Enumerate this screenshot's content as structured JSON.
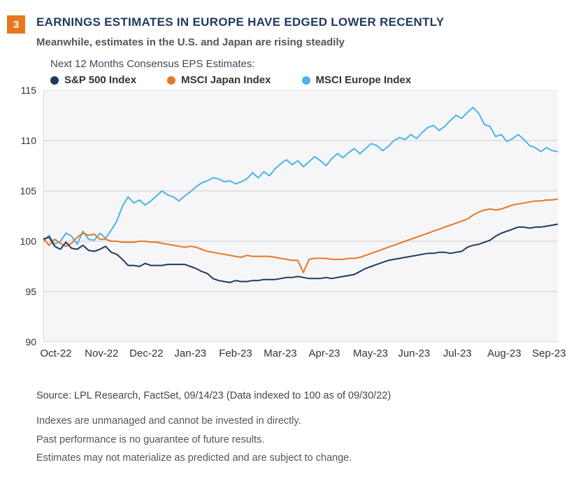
{
  "badge": "3",
  "title": "EARNINGS ESTIMATES IN EUROPE HAVE EDGED LOWER RECENTLY",
  "subtitle": "Meanwhile, estimates in the U.S. and Japan are rising steadily",
  "chart": {
    "type": "line",
    "header": "Next 12 Months Consensus EPS Estimates:",
    "background_color": "#f6f6f8",
    "page_background": "#ffffff",
    "gridline_color": "#cfcfd3",
    "axis_line_color": "#bfbfc3",
    "ylim": [
      90,
      115
    ],
    "ytick_step": 5,
    "yticks": [
      90,
      95,
      100,
      105,
      110,
      115
    ],
    "x_labels": [
      "Oct-22",
      "Nov-22",
      "Dec-22",
      "Jan-23",
      "Feb-23",
      "Mar-23",
      "Apr-23",
      "May-23",
      "Jun-23",
      "Jul-23",
      "Aug-23",
      "Sep-23"
    ],
    "line_width": 2,
    "label_fontsize": 14,
    "title_color": "#1f3a5f",
    "legend": [
      {
        "label": "S&P 500 Index",
        "color": "#1f3a5f"
      },
      {
        "label": "MSCI Japan Index",
        "color": "#e87722"
      },
      {
        "label": "MSCI Europe Index",
        "color": "#4ab4e6"
      }
    ],
    "series": {
      "sp500": {
        "color": "#1f3a5f",
        "values": [
          100.2,
          100.4,
          99.5,
          99.2,
          99.9,
          99.3,
          99.2,
          99.6,
          99.1,
          99.0,
          99.2,
          99.5,
          98.9,
          98.7,
          98.2,
          97.6,
          97.6,
          97.5,
          97.8,
          97.6,
          97.6,
          97.6,
          97.7,
          97.7,
          97.7,
          97.7,
          97.5,
          97.3,
          97.0,
          96.8,
          96.3,
          96.1,
          96.0,
          95.9,
          96.1,
          96.0,
          96.0,
          96.1,
          96.1,
          96.2,
          96.2,
          96.2,
          96.3,
          96.4,
          96.4,
          96.5,
          96.4,
          96.3,
          96.3,
          96.3,
          96.4,
          96.3,
          96.4,
          96.5,
          96.6,
          96.7,
          97.0,
          97.3,
          97.5,
          97.7,
          97.9,
          98.1,
          98.2,
          98.3,
          98.4,
          98.5,
          98.6,
          98.7,
          98.8,
          98.8,
          98.9,
          98.9,
          98.8,
          98.9,
          99.0,
          99.4,
          99.6,
          99.7,
          99.9,
          100.1,
          100.5,
          100.8,
          101.0,
          101.2,
          101.4,
          101.4,
          101.3,
          101.4,
          101.4,
          101.5,
          101.6,
          101.7
        ]
      },
      "japan": {
        "color": "#e87722",
        "values": [
          100.3,
          99.6,
          100.2,
          99.8,
          99.5,
          99.8,
          100.4,
          100.8,
          100.6,
          100.7,
          100.2,
          100.2,
          100.0,
          100.0,
          99.9,
          99.9,
          99.9,
          100.0,
          100.0,
          99.9,
          99.9,
          99.8,
          99.7,
          99.6,
          99.5,
          99.4,
          99.5,
          99.4,
          99.2,
          99.0,
          98.9,
          98.8,
          98.7,
          98.6,
          98.5,
          98.4,
          98.6,
          98.5,
          98.5,
          98.5,
          98.5,
          98.4,
          98.3,
          98.2,
          98.1,
          98.1,
          96.9,
          98.2,
          98.3,
          98.3,
          98.3,
          98.2,
          98.2,
          98.2,
          98.3,
          98.3,
          98.4,
          98.6,
          98.8,
          99.0,
          99.2,
          99.4,
          99.6,
          99.8,
          100.0,
          100.2,
          100.4,
          100.6,
          100.8,
          101.0,
          101.2,
          101.4,
          101.6,
          101.8,
          102.0,
          102.2,
          102.6,
          102.9,
          103.1,
          103.2,
          103.1,
          103.2,
          103.4,
          103.6,
          103.7,
          103.8,
          103.9,
          104.0,
          104.0,
          104.1,
          104.1,
          104.2
        ]
      },
      "europe": {
        "color": "#4ab4e6",
        "values": [
          100.0,
          100.6,
          99.7,
          100.0,
          100.8,
          100.5,
          99.7,
          101.0,
          100.2,
          100.1,
          100.8,
          100.3,
          101.1,
          102.0,
          103.5,
          104.4,
          103.8,
          104.1,
          103.6,
          104.0,
          104.5,
          105.0,
          104.6,
          104.4,
          104.0,
          104.5,
          104.9,
          105.4,
          105.8,
          106.0,
          106.3,
          106.2,
          105.9,
          106.0,
          105.7,
          105.9,
          106.2,
          106.8,
          106.3,
          106.9,
          106.5,
          107.2,
          107.7,
          108.1,
          107.6,
          108.0,
          107.4,
          107.9,
          108.4,
          108.0,
          107.5,
          108.2,
          108.7,
          108.3,
          108.8,
          109.2,
          108.7,
          109.2,
          109.7,
          109.5,
          109.0,
          109.4,
          110.0,
          110.3,
          110.1,
          110.6,
          110.2,
          110.8,
          111.3,
          111.5,
          111.0,
          111.4,
          112.0,
          112.5,
          112.2,
          112.8,
          113.3,
          112.7,
          111.6,
          111.4,
          110.4,
          110.6,
          109.9,
          110.2,
          110.6,
          110.1,
          109.5,
          109.3,
          108.9,
          109.3,
          109.0,
          108.9
        ]
      }
    }
  },
  "footer": {
    "source": "Source: LPL Research, FactSet,  09/14/23  (Data indexed to 100 as of 09/30/22)",
    "lines": [
      "Indexes are unmanaged and cannot be invested in directly.",
      "Past performance is no guarantee of future results.",
      "Estimates may not materialize as predicted and are subject to change."
    ]
  }
}
